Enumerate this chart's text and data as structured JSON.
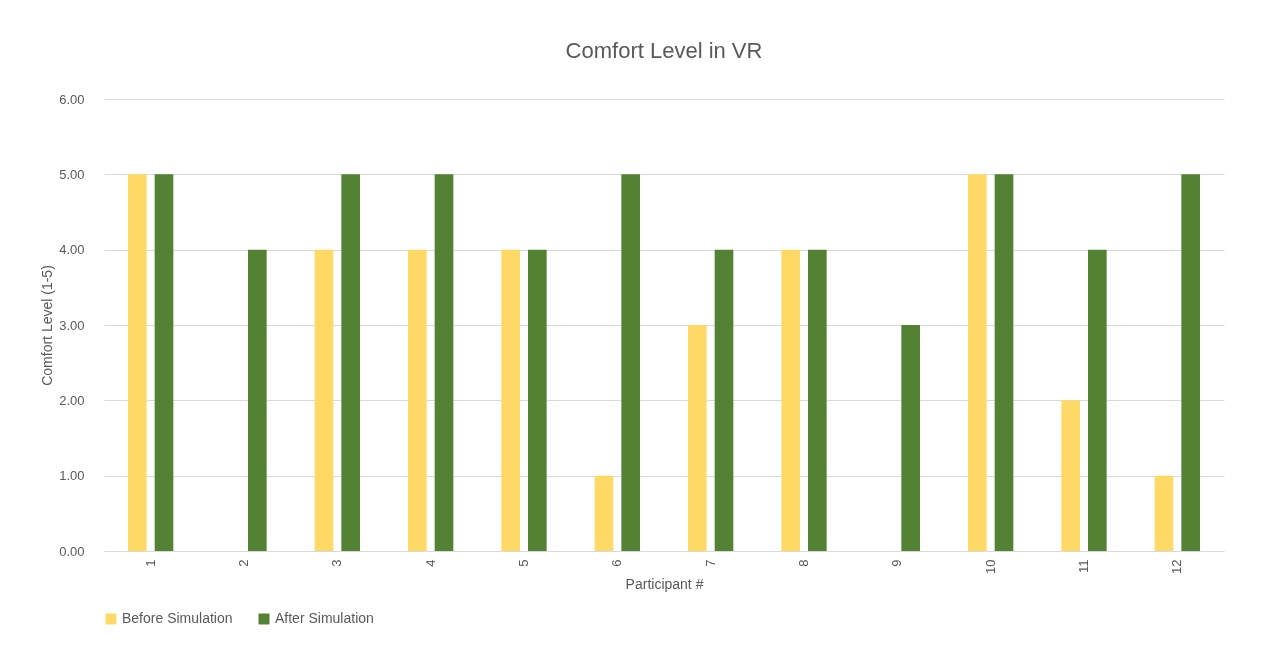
{
  "chart_data": {
    "type": "bar",
    "title": "Comfort Level in VR",
    "xlabel": "Participant #",
    "ylabel": "Comfort Level (1-5)",
    "categories": [
      "1",
      "2",
      "3",
      "4",
      "5",
      "6",
      "7",
      "8",
      "9",
      "10",
      "11",
      "12"
    ],
    "series": [
      {
        "name": "Before Simulation",
        "color": "#ffd966",
        "values": [
          5,
          null,
          4,
          4,
          4,
          1,
          3,
          4,
          null,
          5,
          2,
          1
        ]
      },
      {
        "name": "After Simulation",
        "color": "#548235",
        "values": [
          5,
          4,
          5,
          5,
          4,
          5,
          4,
          4,
          3,
          5,
          4,
          5
        ]
      }
    ],
    "ylim": [
      0,
      6
    ],
    "yticks": [
      {
        "value": 0,
        "label": "0.00"
      },
      {
        "value": 1,
        "label": "1.00"
      },
      {
        "value": 2,
        "label": "2.00"
      },
      {
        "value": 3,
        "label": "3.00"
      },
      {
        "value": 4,
        "label": "4.00"
      },
      {
        "value": 5,
        "label": "5.00"
      },
      {
        "value": 6,
        "label": "6.00"
      }
    ],
    "grid": "y",
    "legend": "bottom"
  }
}
